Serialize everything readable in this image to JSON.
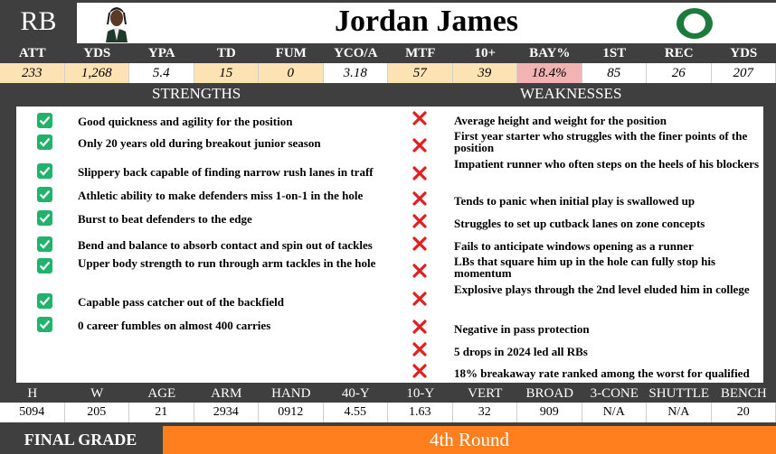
{
  "header": {
    "position": "RB",
    "name": "Jordan James"
  },
  "stat_labels": [
    "ATT",
    "YDS",
    "YPA",
    "TD",
    "FUM",
    "YCO/A",
    "MTF",
    "10+",
    "BAY%",
    "1ST",
    "REC",
    "YDS"
  ],
  "stat_values": [
    "233",
    "1,268",
    "5.4",
    "15",
    "0",
    "3.18",
    "57",
    "39",
    "18.4%",
    "85",
    "26",
    "207"
  ],
  "strengths_title": "STRENGTHS",
  "weaknesses_title": "WEAKNESSES",
  "strengths": [
    "Good quickness and agility for the position",
    "Only 20 years old during breakout junior season",
    "Slippery back capable of finding narrow rush lanes in traff",
    "Athletic ability to make defenders miss 1-on-1  in the hole",
    "Burst to beat defenders to the edge",
    "Bend and balance to absorb contact and spin out of tackles",
    "Upper body strength to run through arm tackles in the hole",
    "Capable pass catcher out of the backfield",
    "0 career fumbles on almost 400 carries"
  ],
  "weaknesses": [
    "Average height and weight for the position",
    "First year starter who struggles with the finer points of the position",
    "Impatient runner who often steps on the heels of his blockers",
    "Tends to panic when initial play is swallowed up",
    "Struggles to set up cutback lanes on zone concepts",
    "Fails to anticipate windows opening as a runner",
    "LBs that square him up in the hole can fully stop his momentum",
    "Explosive plays through the 2nd level eluded him in college",
    "Negative in pass protection",
    "5 drops in 2024 led all RBs",
    "18% breakaway rate ranked among the worst for qualified"
  ],
  "measure_labels": [
    "H",
    "W",
    "AGE",
    "ARM",
    "HAND",
    "40-Y",
    "10-Y",
    "VERT",
    "BROAD",
    "3-CONE",
    "SHUTTLE",
    "BENCH"
  ],
  "measure_values": [
    "5094",
    "205",
    "21",
    "2934",
    "0912",
    "4.55",
    "1.63",
    "32",
    "909",
    "N/A",
    "N/A",
    "20"
  ],
  "final": {
    "label": "FINAL GRADE",
    "grade": "4th Round"
  },
  "colors": {
    "accent": "#ff7f1f",
    "check": "#21b36b",
    "cross": "#e02020",
    "header_bg": "#3f3f3f"
  }
}
